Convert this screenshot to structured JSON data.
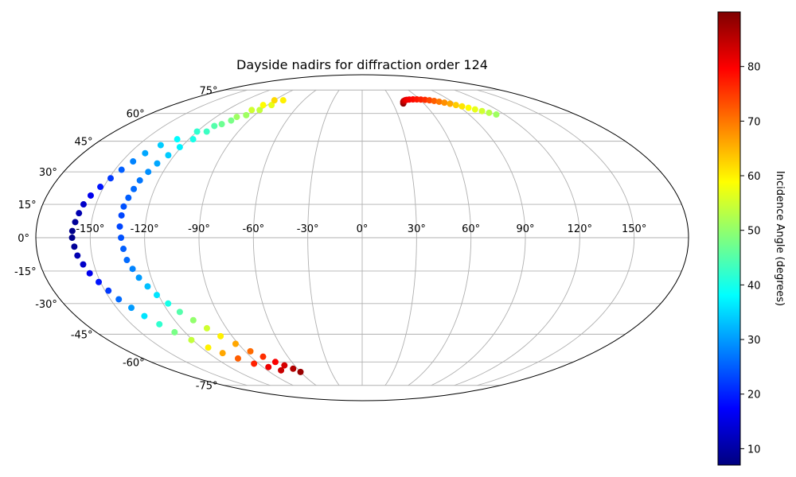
{
  "chart_data": {
    "type": "scatter",
    "projection": "mollweide",
    "title": "Dayside nadirs for diffraction order 124",
    "longitude_ticks": [
      "-150°",
      "-120°",
      "-90°",
      "-60°",
      "-30°",
      "0°",
      "30°",
      "60°",
      "90°",
      "120°",
      "150°"
    ],
    "latitude_ticks": [
      "75°",
      "60°",
      "45°",
      "30°",
      "15°",
      "0°",
      "-15°",
      "-30°",
      "-45°",
      "-60°",
      "-75°"
    ],
    "grid": true,
    "colorbar": {
      "label": "Incidence Angle (degrees)",
      "colormap": "jet",
      "range": [
        7,
        90
      ],
      "ticks": [
        "10",
        "20",
        "30",
        "40",
        "50",
        "60",
        "70",
        "80"
      ]
    },
    "series": [
      {
        "lon": [
          -81,
          -86,
          -91,
          -97,
          -104,
          -112,
          -120,
          -128,
          -135,
          -140,
          -143,
          -146,
          -149,
          -152,
          -155,
          -157,
          -158,
          -159,
          -160,
          -160,
          -159,
          -158,
          -156,
          -154,
          -151,
          -148,
          -145,
          -141,
          -137,
          -132,
          -127,
          -121,
          -115,
          -109,
          -102,
          -94,
          -85,
          -77
        ],
        "lat": [
          68,
          65,
          62,
          59,
          56,
          53,
          50,
          46,
          43,
          39,
          35,
          31,
          27,
          23,
          19,
          15,
          11,
          7,
          3,
          0,
          -4,
          -8,
          -12,
          -16,
          -20,
          -24,
          -28,
          -32,
          -36,
          -40,
          -44,
          -48,
          -52,
          -55,
          -58,
          -61,
          -63,
          -65
        ],
        "incidence": [
          60,
          57,
          54,
          51,
          48,
          45,
          42,
          38,
          34,
          31,
          28,
          25,
          22,
          19,
          16,
          13,
          11,
          9,
          8,
          8,
          9,
          11,
          13,
          16,
          19,
          22,
          26,
          30,
          36,
          42,
          48,
          54,
          60,
          66,
          72,
          77,
          81,
          84
        ]
      },
      {
        "lon": [
          -90,
          -94,
          -98,
          -103,
          -108,
          -113,
          -117,
          -121,
          -124,
          -127,
          -129,
          -131,
          -132,
          -133,
          -134,
          -134,
          -134,
          -133,
          -132,
          -131,
          -129,
          -127,
          -124,
          -121,
          -117,
          -113,
          -108,
          -103,
          -98,
          -92,
          -86,
          -80,
          -74,
          -69,
          -64,
          -60
        ],
        "lat": [
          68,
          65,
          62,
          58,
          54,
          50,
          46,
          42,
          38,
          34,
          30,
          26,
          22,
          18,
          14,
          10,
          5,
          0,
          -5,
          -10,
          -14,
          -18,
          -22,
          -26,
          -30,
          -34,
          -38,
          -42,
          -46,
          -50,
          -54,
          -57,
          -60,
          -62,
          -64,
          -66
        ],
        "incidence": [
          62,
          59,
          55,
          51,
          47,
          43,
          40,
          37,
          34,
          31,
          29,
          27,
          26,
          25,
          24,
          23,
          23,
          24,
          25,
          26,
          28,
          30,
          33,
          36,
          40,
          45,
          50,
          55,
          60,
          66,
          71,
          76,
          80,
          83,
          86,
          88
        ]
      },
      {
        "lon": [
          40,
          41,
          42,
          44,
          46,
          49,
          53,
          57,
          61,
          65,
          69,
          73,
          77,
          81,
          85,
          89,
          93,
          97,
          101,
          105,
          109,
          113
        ],
        "lat": [
          66,
          67,
          67.5,
          68,
          68.3,
          68.5,
          68.6,
          68.6,
          68.5,
          68.3,
          68,
          67.6,
          67.1,
          66.5,
          65.8,
          65,
          64.2,
          63.3,
          62.4,
          61.4,
          60.4,
          59.4
        ],
        "incidence": [
          89,
          87,
          85,
          83,
          81,
          80,
          79,
          78,
          77,
          76,
          74,
          72,
          70,
          68,
          66,
          63,
          61,
          59,
          57,
          55,
          53,
          51
        ]
      }
    ]
  }
}
